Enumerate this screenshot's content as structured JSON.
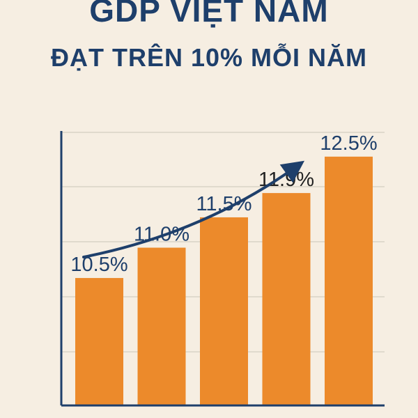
{
  "title": "GDP VIỆT NAM",
  "subtitle": "ĐẠT TRÊN 10% MỖI NĂM",
  "colors": {
    "background": "#f6eee2",
    "bar": "#ec8a2b",
    "axis": "#1e3f6b",
    "title": "#1e3f6b",
    "label": "#1e3f6b",
    "grid": "#d9d3c6"
  },
  "chart_data": {
    "type": "bar",
    "categories": [
      "",
      "",
      "",
      "",
      ""
    ],
    "values": [
      10.5,
      11.0,
      11.5,
      11.9,
      12.5
    ],
    "labels": [
      "10.5%",
      "11.0%",
      "11.5%",
      "11.9%",
      "12.5%"
    ],
    "ylim": [
      8.4,
      12.9
    ],
    "grid": true,
    "trend_arrow": true,
    "xlabel": "",
    "ylabel": ""
  }
}
